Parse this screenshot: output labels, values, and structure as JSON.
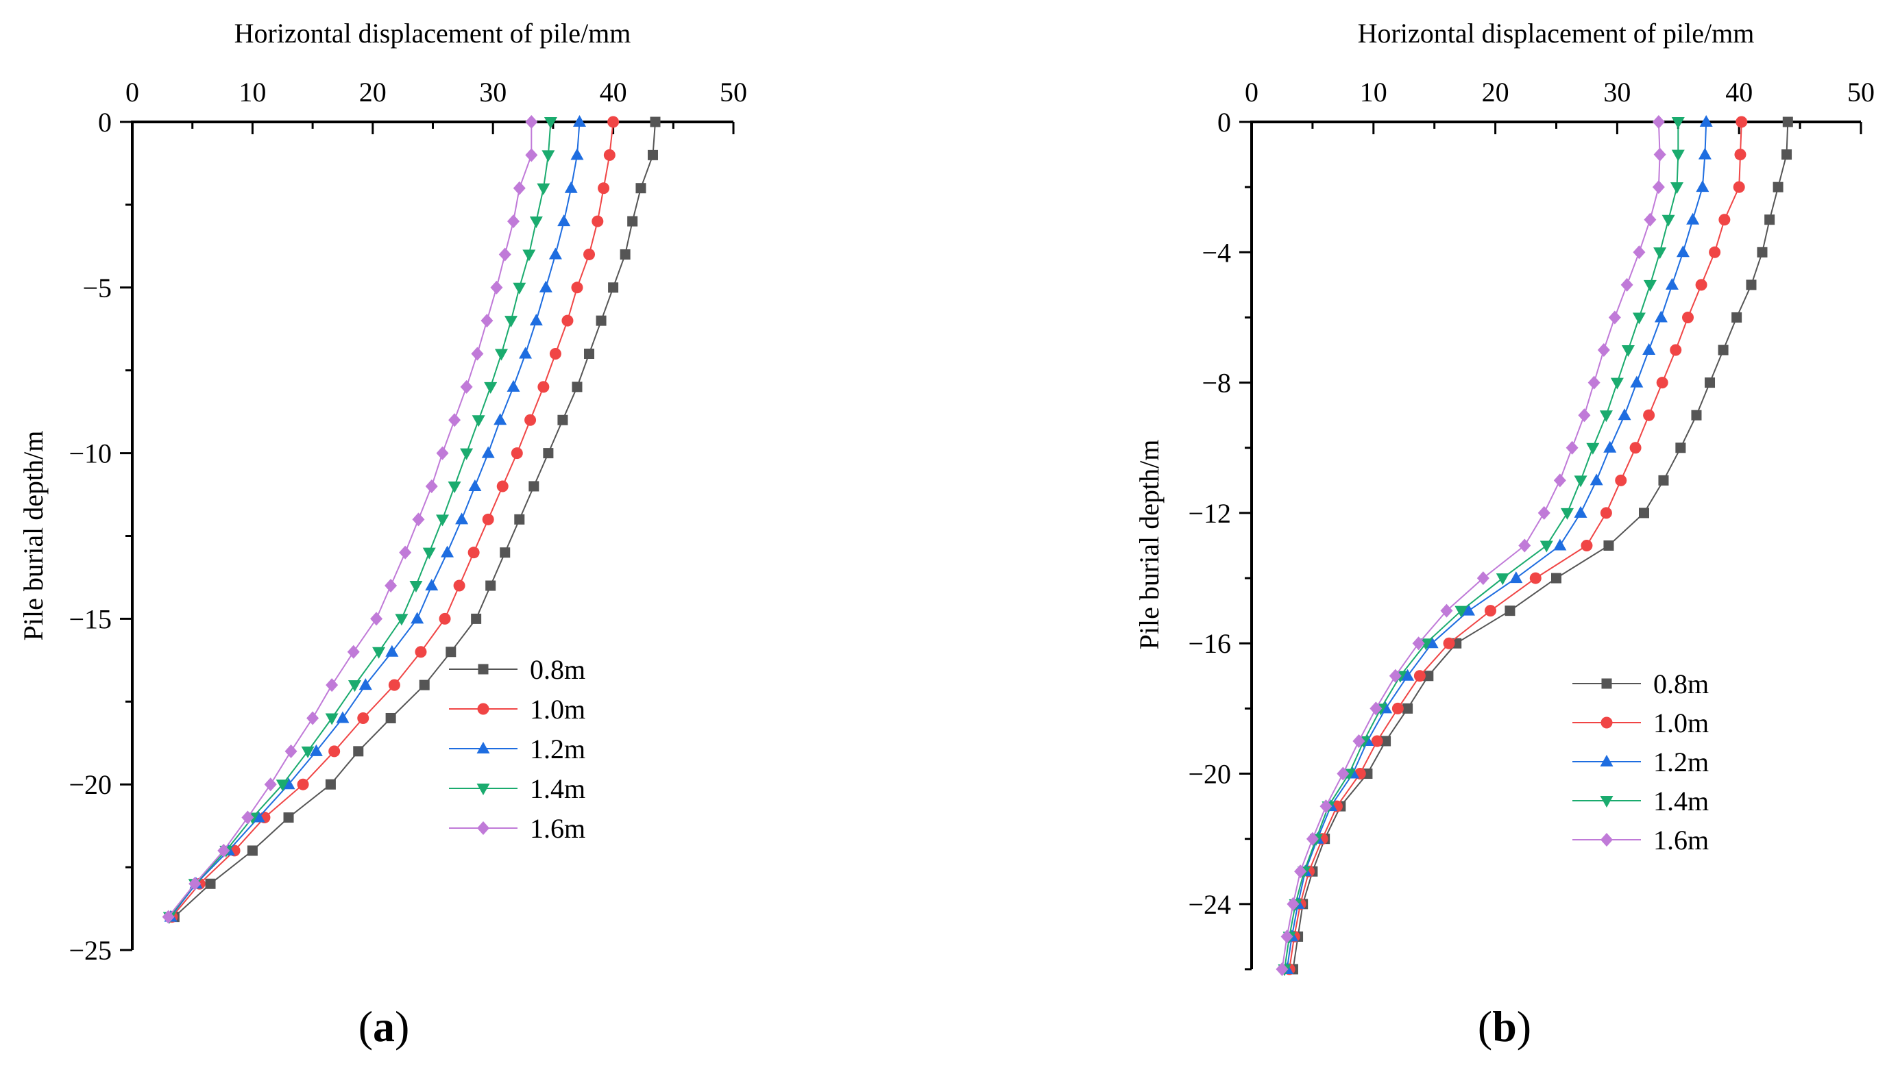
{
  "figure": {
    "panels": [
      {
        "label_open": "(",
        "label_letter": "a",
        "label_close": ")"
      },
      {
        "label_open": "(",
        "label_letter": "b",
        "label_close": ")"
      }
    ]
  },
  "chart_data": [
    {
      "type": "line",
      "panel": "(a)",
      "xlabel": "Horizontal displacement of pile/mm",
      "ylabel": "Pile burial depth/m",
      "xlim": [
        0,
        50
      ],
      "ylim": [
        -25,
        0
      ],
      "x_ticks": [
        0,
        10,
        20,
        30,
        40,
        50
      ],
      "y_ticks": [
        0,
        -5,
        -10,
        -15,
        -20,
        -25
      ],
      "x_axis_position": "top",
      "grid": false,
      "legend_position": "lower-right",
      "depths": [
        0,
        -1,
        -2,
        -3,
        -4,
        -5,
        -6,
        -7,
        -8,
        -9,
        -10,
        -11,
        -12,
        -13,
        -14,
        -15,
        -16,
        -17,
        -18,
        -19,
        -20,
        -21,
        -22,
        -23,
        -24
      ],
      "series": [
        {
          "name": "0.8m",
          "color": "#555555",
          "marker": "square",
          "values": [
            43.5,
            43.3,
            42.3,
            41.6,
            41.0,
            40.0,
            39.0,
            38.0,
            37.0,
            35.8,
            34.6,
            33.4,
            32.2,
            31.0,
            29.8,
            28.6,
            26.5,
            24.3,
            21.5,
            18.8,
            16.5,
            13.0,
            10.0,
            6.5,
            3.5
          ]
        },
        {
          "name": "1.0m",
          "color": "#f04545",
          "marker": "circle",
          "values": [
            40.0,
            39.7,
            39.2,
            38.7,
            38.0,
            37.0,
            36.2,
            35.2,
            34.2,
            33.1,
            32.0,
            30.8,
            29.6,
            28.4,
            27.2,
            26.0,
            24.0,
            21.8,
            19.2,
            16.8,
            14.2,
            11.0,
            8.5,
            5.6,
            3.3
          ]
        },
        {
          "name": "1.2m",
          "color": "#1e6de0",
          "marker": "triangle-up",
          "values": [
            37.2,
            37.0,
            36.5,
            35.9,
            35.2,
            34.4,
            33.6,
            32.7,
            31.7,
            30.6,
            29.6,
            28.5,
            27.4,
            26.2,
            24.9,
            23.7,
            21.6,
            19.4,
            17.5,
            15.3,
            13.0,
            10.5,
            8.0,
            5.3,
            3.2
          ]
        },
        {
          "name": "1.4m",
          "color": "#1aab6e",
          "marker": "triangle-down",
          "values": [
            34.8,
            34.6,
            34.2,
            33.6,
            33.0,
            32.2,
            31.5,
            30.7,
            29.8,
            28.8,
            27.8,
            26.8,
            25.8,
            24.7,
            23.6,
            22.4,
            20.5,
            18.5,
            16.6,
            14.6,
            12.5,
            10.0,
            7.8,
            5.2,
            3.1
          ]
        },
        {
          "name": "1.6m",
          "color": "#c07ad8",
          "marker": "diamond",
          "values": [
            33.2,
            33.2,
            32.2,
            31.7,
            31.0,
            30.3,
            29.5,
            28.7,
            27.8,
            26.8,
            25.8,
            24.9,
            23.8,
            22.7,
            21.5,
            20.3,
            18.4,
            16.6,
            15.0,
            13.2,
            11.5,
            9.6,
            7.6,
            5.2,
            3.0
          ]
        }
      ]
    },
    {
      "type": "line",
      "panel": "(b)",
      "xlabel": "Horizontal displacement of pile/mm",
      "ylabel": "Pile burial depth/m",
      "xlim": [
        0,
        50
      ],
      "ylim": [
        -26,
        0
      ],
      "x_ticks": [
        0,
        10,
        20,
        30,
        40,
        50
      ],
      "y_ticks": [
        0,
        -4,
        -8,
        -12,
        -16,
        -20,
        -24
      ],
      "x_axis_position": "top",
      "grid": false,
      "legend_position": "lower-right",
      "depths": [
        0,
        -1,
        -2,
        -3,
        -4,
        -5,
        -6,
        -7,
        -8,
        -9,
        -10,
        -11,
        -12,
        -13,
        -14,
        -15,
        -16,
        -17,
        -18,
        -19,
        -20,
        -21,
        -22,
        -23,
        -24,
        -25,
        -26
      ],
      "series": [
        {
          "name": "0.8m",
          "color": "#555555",
          "marker": "square",
          "values": [
            44.0,
            43.9,
            43.2,
            42.5,
            41.9,
            41.0,
            39.8,
            38.7,
            37.6,
            36.5,
            35.2,
            33.8,
            32.2,
            29.3,
            25.0,
            21.2,
            16.8,
            14.5,
            12.8,
            11.0,
            9.5,
            7.3,
            6.0,
            5.0,
            4.2,
            3.8,
            3.4
          ]
        },
        {
          "name": "1.0m",
          "color": "#f04545",
          "marker": "circle",
          "values": [
            40.2,
            40.1,
            40.0,
            38.8,
            38.0,
            36.9,
            35.8,
            34.8,
            33.7,
            32.6,
            31.5,
            30.3,
            29.1,
            27.5,
            23.3,
            19.6,
            16.2,
            13.8,
            12.0,
            10.3,
            8.9,
            7.0,
            5.8,
            4.7,
            4.0,
            3.5,
            3.1
          ]
        },
        {
          "name": "1.2m",
          "color": "#1e6de0",
          "marker": "triangle-up",
          "values": [
            37.3,
            37.2,
            37.0,
            36.2,
            35.4,
            34.5,
            33.6,
            32.6,
            31.6,
            30.6,
            29.4,
            28.3,
            27.0,
            25.3,
            21.7,
            17.8,
            14.8,
            12.8,
            11.0,
            9.5,
            8.3,
            6.5,
            5.4,
            4.4,
            3.8,
            3.3,
            2.9
          ]
        },
        {
          "name": "1.4m",
          "color": "#1aab6e",
          "marker": "triangle-down",
          "values": [
            35.0,
            35.0,
            34.9,
            34.2,
            33.5,
            32.7,
            31.8,
            30.9,
            30.0,
            29.1,
            28.0,
            27.0,
            25.9,
            24.2,
            20.6,
            17.2,
            14.3,
            12.2,
            10.6,
            9.2,
            8.0,
            6.3,
            5.3,
            4.3,
            3.6,
            3.1,
            2.7
          ]
        },
        {
          "name": "1.6m",
          "color": "#c07ad8",
          "marker": "diamond",
          "values": [
            33.4,
            33.5,
            33.4,
            32.7,
            31.8,
            30.8,
            29.8,
            28.9,
            28.1,
            27.3,
            26.3,
            25.3,
            24.0,
            22.4,
            19.0,
            16.0,
            13.7,
            11.8,
            10.2,
            8.8,
            7.5,
            6.1,
            5.0,
            4.0,
            3.4,
            2.9,
            2.5
          ]
        }
      ]
    }
  ]
}
